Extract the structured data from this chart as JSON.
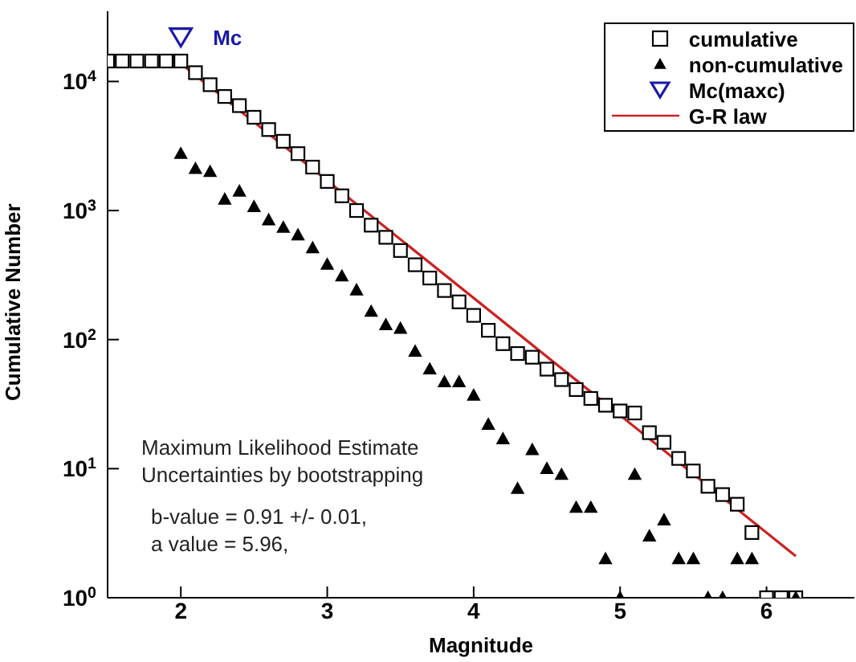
{
  "chart_data": {
    "type": "scatter",
    "xlabel": "Magnitude",
    "ylabel": "Cumulative Number",
    "xlim": [
      1.5,
      6.6
    ],
    "xticks": [
      2,
      3,
      4,
      5,
      6
    ],
    "ylim": [
      1,
      35000
    ],
    "log": "y",
    "yticks": [
      {
        "value": 1,
        "label": "10$^{0}$"
      },
      {
        "value": 10,
        "label": "10$^{1}$"
      },
      {
        "value": 100,
        "label": "10$^{2}$"
      },
      {
        "value": 1000,
        "label": "10$^{3}$"
      },
      {
        "value": 10000,
        "label": "10$^{4}$"
      }
    ],
    "grid": false,
    "legend": "top right",
    "series": [
      {
        "name": "cumulative",
        "marker": "square",
        "color": "#000000",
        "x": [
          1.5,
          1.6,
          1.7,
          1.8,
          1.9,
          2.0,
          2.1,
          2.2,
          2.3,
          2.4,
          2.5,
          2.6,
          2.7,
          2.8,
          2.9,
          3.0,
          3.1,
          3.2,
          3.3,
          3.4,
          3.5,
          3.6,
          3.7,
          3.8,
          3.9,
          4.0,
          4.1,
          4.2,
          4.3,
          4.4,
          4.5,
          4.6,
          4.7,
          4.8,
          4.9,
          5.0,
          5.1,
          5.2,
          5.3,
          5.4,
          5.5,
          5.6,
          5.7,
          5.8,
          5.9,
          6.0,
          6.1,
          6.2
        ],
        "values": [
          14400,
          14400,
          14400,
          14400,
          14400,
          14400,
          11700,
          9440,
          7650,
          6500,
          5280,
          4240,
          3440,
          2760,
          2170,
          1680,
          1300,
          1000,
          770,
          620,
          490,
          380,
          300,
          240,
          196,
          154,
          118,
          93,
          78,
          73,
          59,
          49,
          41,
          35,
          31,
          28,
          27,
          19,
          16,
          12,
          9.6,
          7.3,
          6.3,
          5.3,
          3.2,
          1,
          1,
          1
        ]
      },
      {
        "name": "non-cumulative",
        "marker": "triangle",
        "color": "#000000",
        "x": [
          2.0,
          2.1,
          2.2,
          2.3,
          2.4,
          2.5,
          2.6,
          2.7,
          2.8,
          2.9,
          3.0,
          3.1,
          3.2,
          3.3,
          3.4,
          3.5,
          3.6,
          3.7,
          3.8,
          3.9,
          4.0,
          4.1,
          4.2,
          4.3,
          4.4,
          4.5,
          4.6,
          4.7,
          4.8,
          4.9,
          5.0,
          5.1,
          5.2,
          5.3,
          5.4,
          5.5,
          5.6,
          5.7,
          5.8,
          5.9,
          6.2
        ],
        "values": [
          2760,
          2110,
          2000,
          1220,
          1410,
          1070,
          845,
          738,
          646,
          513,
          382,
          310,
          242,
          165,
          130,
          122,
          81,
          59,
          47,
          47,
          37,
          22,
          17,
          7,
          14,
          10,
          9,
          5,
          5,
          2,
          1,
          9,
          3,
          4,
          2,
          2,
          1,
          1,
          2,
          2,
          1
        ]
      },
      {
        "name": "Mc(maxc)",
        "marker": "triangle-down",
        "color": "#1a1aa8",
        "x": [
          2.0
        ],
        "values": [
          21900
        ]
      },
      {
        "name": "G-R law",
        "type": "line",
        "marker": "none",
        "line_style": "solid",
        "color": "#cc2222",
        "x": [
          2.0,
          6.2
        ],
        "values": [
          13800,
          2.1
        ]
      }
    ],
    "annotations": [
      {
        "text": "Mc",
        "x": 2.0,
        "y": 21900
      },
      "Maximum Likelihood Estimate",
      "Uncertainties by bootstrapping",
      "b-value = 0.91 +/- 0.01,",
      "a value = 5.96,"
    ]
  }
}
